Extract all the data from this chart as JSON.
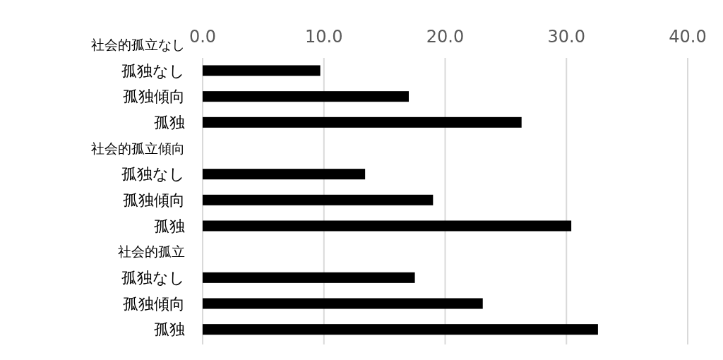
{
  "chart_data": {
    "type": "bar",
    "orientation": "horizontal",
    "categories": [
      "社会的孤立なし",
      "孤独なし",
      "孤独傾向",
      "孤独",
      "社会的孤立傾向",
      "孤独なし",
      "孤独傾向",
      "孤独",
      "社会的孤立",
      "孤独なし",
      "孤独傾向",
      "孤独"
    ],
    "values": [
      null,
      9.7,
      17.0,
      26.3,
      null,
      13.4,
      19.0,
      30.4,
      null,
      17.5,
      23.1,
      32.6
    ],
    "color": "#000000",
    "xlim": [
      0,
      40
    ],
    "xticks": [
      {
        "value": 0,
        "label": "0.0"
      },
      {
        "value": 10,
        "label": "10.0"
      },
      {
        "value": 20,
        "label": "20.0"
      },
      {
        "value": 30,
        "label": "30.0"
      },
      {
        "value": 40,
        "label": "40.0"
      }
    ],
    "grid": "x"
  }
}
